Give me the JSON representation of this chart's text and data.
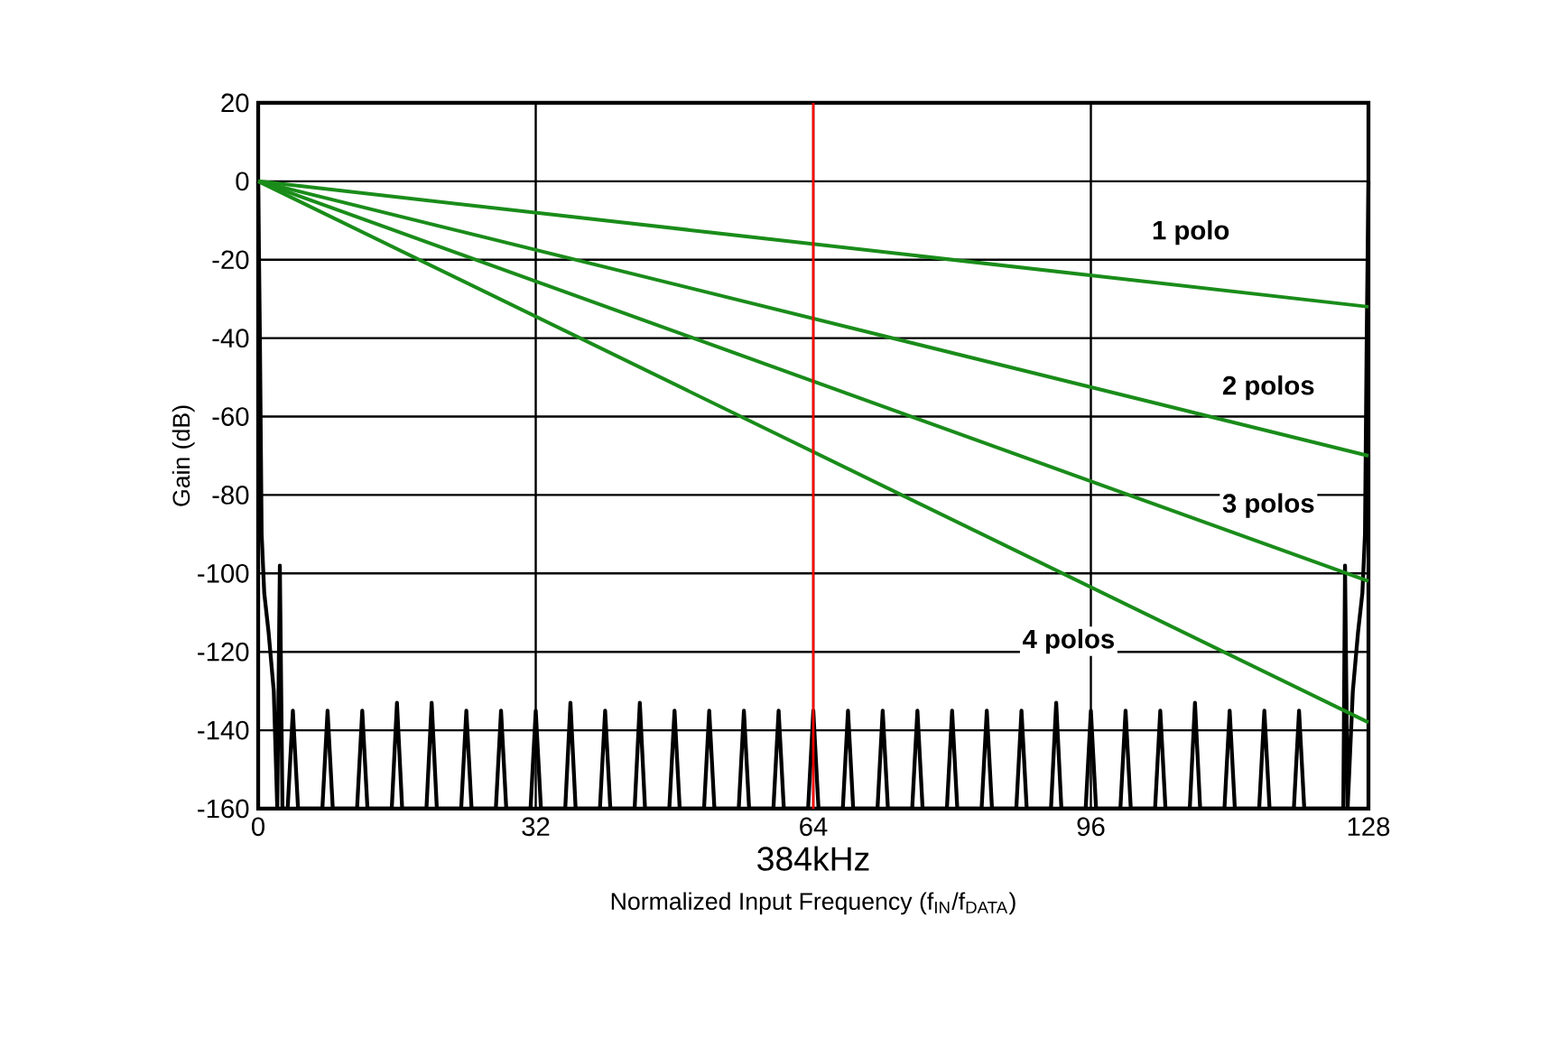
{
  "chart_data": {
    "type": "line",
    "xlabel": "Normalized Input Frequency (f$_{IN}$/f$_{DATA}$)",
    "ylabel": "Gain (dB)",
    "xlim": [
      0,
      128
    ],
    "ylim": [
      -160,
      20
    ],
    "xticks": [
      0,
      32,
      64,
      96,
      128
    ],
    "yticks": [
      20,
      0,
      -20,
      -40,
      -60,
      -80,
      -100,
      -120,
      -140,
      -160
    ],
    "grid": true,
    "series": [
      {
        "color": "#000000",
        "x": [
          0,
          0.2,
          0.4,
          0.7,
          1.2,
          1.8,
          2.2,
          2.5,
          2.8,
          3.4,
          4,
          4.6,
          7.4,
          8,
          8.6,
          11.4,
          12,
          12.6,
          15.4,
          16,
          16.6,
          19.4,
          20,
          20.6,
          23.4,
          24,
          24.6,
          27.4,
          28,
          28.6,
          31.4,
          32,
          32.6,
          35.4,
          36,
          36.6,
          39.4,
          40,
          40.6,
          43.4,
          44,
          44.6,
          47.4,
          48,
          48.6,
          51.4,
          52,
          52.6,
          55.4,
          56,
          56.6,
          59.4,
          60,
          60.6,
          63.4,
          64,
          64.6,
          67.4,
          68,
          68.6,
          71.4,
          72,
          72.6,
          75.4,
          76,
          76.6,
          79.4,
          80,
          80.6,
          83.4,
          84,
          84.6,
          87.4,
          88,
          88.6,
          91.4,
          92,
          92.6,
          95.4,
          96,
          96.6,
          99.4,
          100,
          100.6,
          103.4,
          104,
          104.6,
          107.4,
          108,
          108.6,
          111.4,
          112,
          112.6,
          115.4,
          116,
          116.6,
          119.4,
          120,
          120.6,
          125.1,
          125.3,
          125.6,
          126.2,
          126.8,
          127.3,
          127.6,
          127.8,
          128
        ],
        "values": [
          0,
          -40,
          -90,
          -105,
          -115,
          -130,
          -160,
          -98,
          -160,
          -160,
          -135,
          -160,
          -160,
          -135,
          -160,
          -160,
          -135,
          -160,
          -160,
          -133,
          -160,
          -160,
          -133,
          -160,
          -160,
          -135,
          -160,
          -160,
          -135,
          -160,
          -160,
          -135,
          -160,
          -160,
          -133,
          -160,
          -160,
          -135,
          -160,
          -160,
          -133,
          -160,
          -160,
          -135,
          -160,
          -160,
          -135,
          -160,
          -160,
          -135,
          -160,
          -160,
          -135,
          -160,
          -160,
          -135,
          -160,
          -160,
          -135,
          -160,
          -160,
          -135,
          -160,
          -160,
          -135,
          -160,
          -160,
          -135,
          -160,
          -160,
          -135,
          -160,
          -160,
          -135,
          -160,
          -160,
          -133,
          -160,
          -160,
          -135,
          -160,
          -160,
          -135,
          -160,
          -160,
          -135,
          -160,
          -160,
          -133,
          -160,
          -160,
          -135,
          -160,
          -160,
          -135,
          -160,
          -160,
          -135,
          -160,
          -160,
          -98,
          -160,
          -130,
          -115,
          -105,
          -90,
          -40,
          0
        ]
      },
      {
        "name": "1 polo",
        "color": "#1a8c1a",
        "x": [
          0,
          128
        ],
        "values": [
          0,
          -32
        ]
      },
      {
        "name": "2 polos",
        "color": "#1a8c1a",
        "x": [
          0,
          128
        ],
        "values": [
          0,
          -70
        ]
      },
      {
        "name": "3 polos",
        "color": "#1a8c1a",
        "x": [
          0,
          128
        ],
        "values": [
          0,
          -102
        ]
      },
      {
        "name": "4 polos",
        "color": "#1a8c1a",
        "x": [
          0,
          128
        ],
        "values": [
          0,
          -138
        ]
      }
    ],
    "ref_lines": [
      {
        "axis": "x",
        "value": 64,
        "label": "384kHz",
        "color": "#ff0000"
      }
    ]
  }
}
